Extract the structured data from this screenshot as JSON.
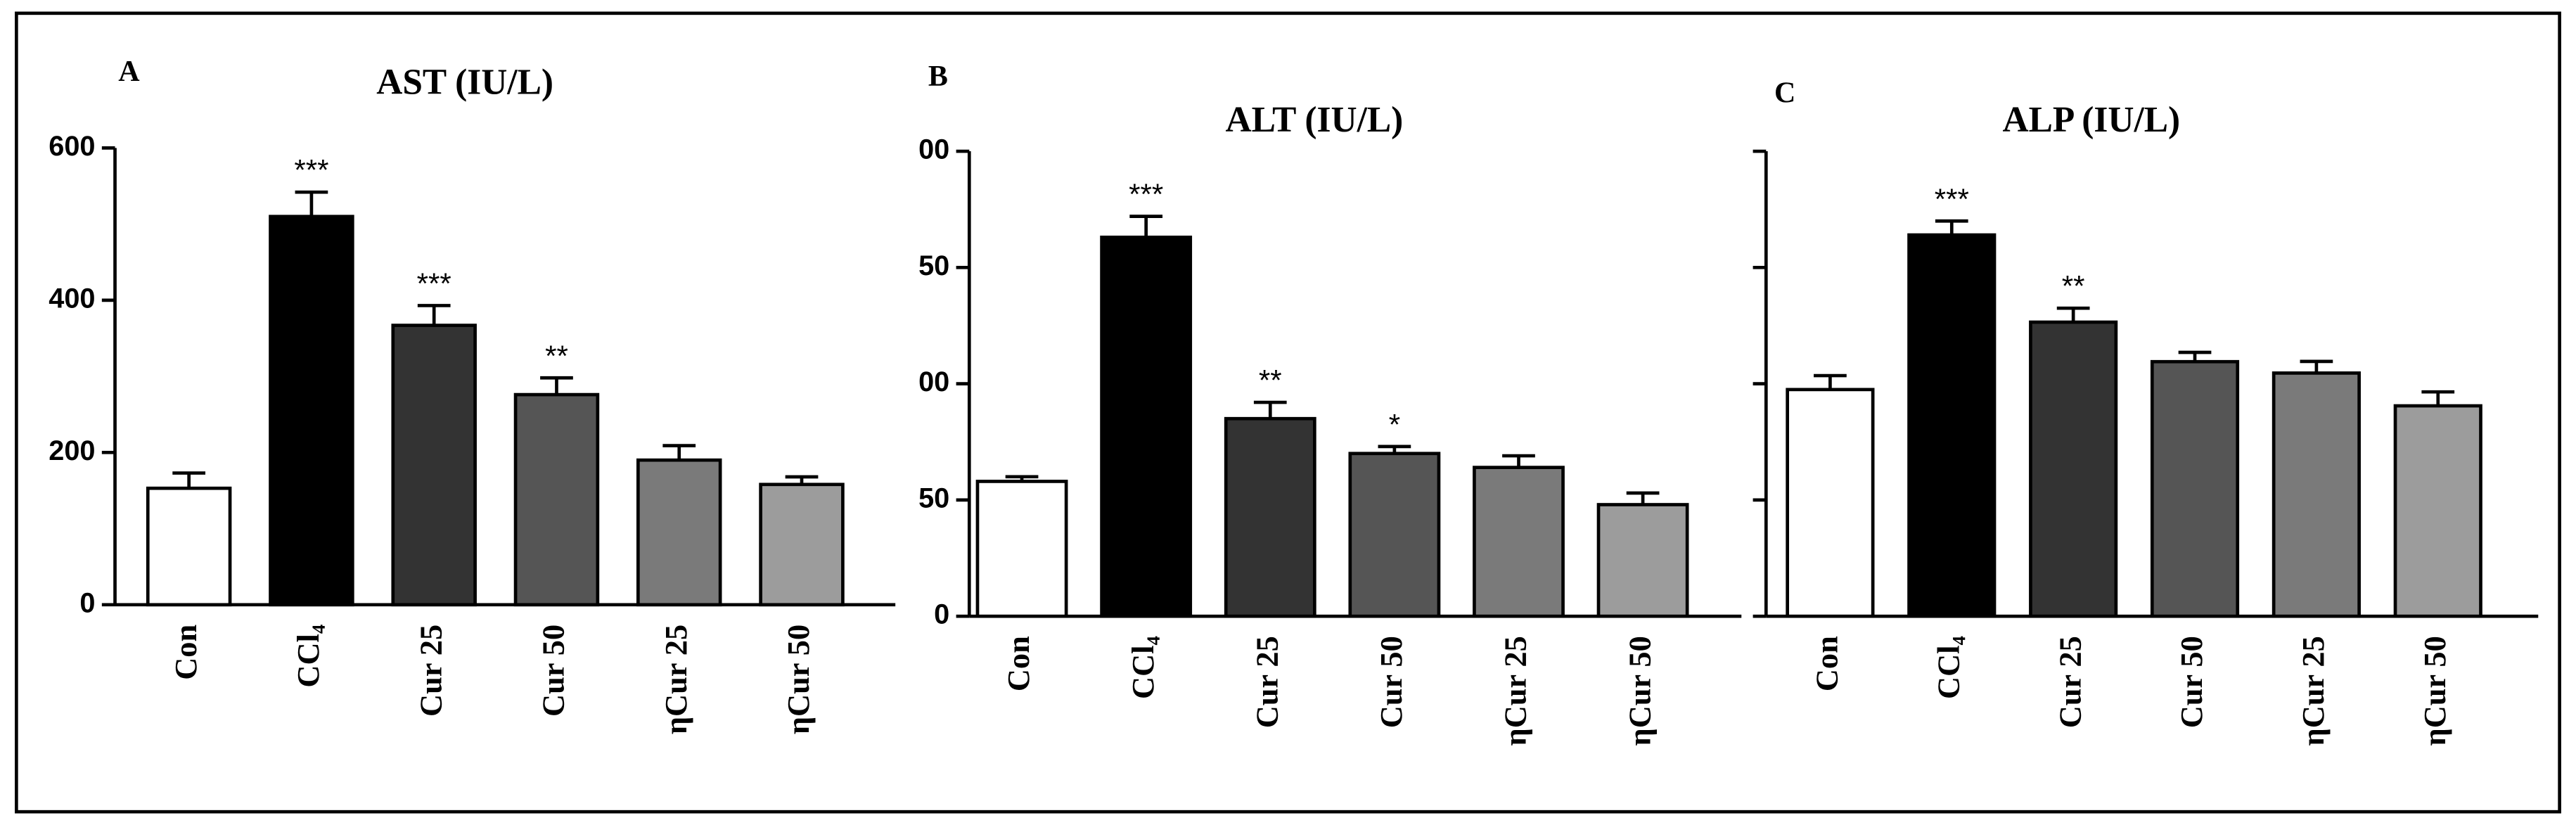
{
  "chart_data": [
    {
      "type": "bar",
      "panel_label": "A",
      "title": "AST (IU/L)",
      "categories": [
        "Con",
        "CCl₄",
        "Cur 25",
        "Cur 50",
        "ηCur 25",
        "ηCur 50"
      ],
      "values": [
        153,
        510,
        367,
        276,
        190,
        158
      ],
      "errors": [
        20,
        32,
        26,
        22,
        19,
        10
      ],
      "annotations": [
        null,
        "***",
        "***",
        "**",
        null,
        null
      ],
      "colors": [
        "#ffffff",
        "#000000",
        "#333333",
        "#555555",
        "#7a7a7a",
        "#9c9c9c"
      ],
      "ylim": [
        0,
        600
      ],
      "yticks": [
        0,
        200,
        400,
        600
      ],
      "tick_labels": true
    },
    {
      "type": "bar",
      "panel_label": "B",
      "title": "ALT (IU/L)",
      "categories": [
        "Con",
        "CCl₄",
        "Cur 25",
        "Cur 50",
        "ηCur 25",
        "ηCur 50"
      ],
      "values": [
        58,
        163,
        85,
        70,
        64,
        48
      ],
      "errors": [
        2,
        9,
        7,
        3,
        5,
        5
      ],
      "annotations": [
        null,
        "***",
        "**",
        "*",
        null,
        null
      ],
      "colors": [
        "#ffffff",
        "#000000",
        "#333333",
        "#555555",
        "#7a7a7a",
        "#9c9c9c"
      ],
      "ylim": [
        0,
        200
      ],
      "yticks": [
        0,
        50,
        {
          "value": 100,
          "label": "00"
        },
        {
          "value": 150,
          "label": "50"
        },
        {
          "value": 200,
          "label": "00"
        }
      ],
      "tick_labels": true
    },
    {
      "type": "bar",
      "panel_label": "C",
      "title": "ALP (IU/L)",
      "categories": [
        "Con",
        "CCl₄",
        "Cur 25",
        "Cur 50",
        "ηCur 25",
        "ηCur 50"
      ],
      "values": [
        97.5,
        164,
        126.5,
        109.5,
        104.6,
        90.5
      ],
      "errors": [
        6,
        6,
        6,
        4,
        5,
        6
      ],
      "annotations": [
        null,
        "***",
        "**",
        null,
        null,
        null
      ],
      "colors": [
        "#ffffff",
        "#000000",
        "#333333",
        "#555555",
        "#7a7a7a",
        "#9c9c9c"
      ],
      "ylim": [
        0,
        200
      ],
      "yticks": [
        0,
        50,
        100,
        150,
        200
      ],
      "tick_labels": false
    }
  ]
}
